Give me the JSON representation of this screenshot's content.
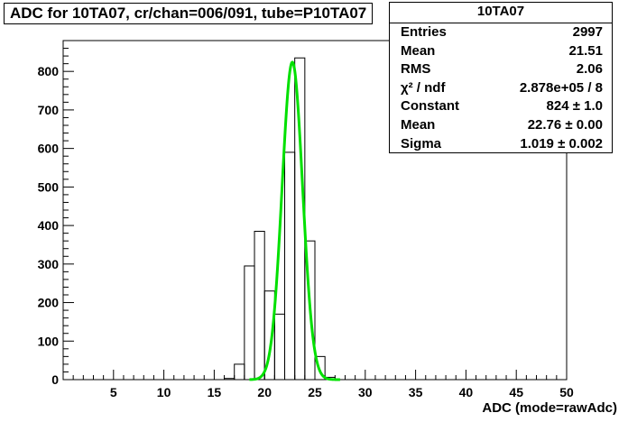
{
  "title": "ADC for 10TA07,  cr/chan=006/091,  tube=P10TA07",
  "stats": {
    "name": "10TA07",
    "rows": [
      {
        "key": "Entries",
        "value": "2997"
      },
      {
        "key": "Mean",
        "value": "21.51"
      },
      {
        "key": "RMS",
        "value": "2.06"
      },
      {
        "key": "χ² / ndf",
        "value": "2.878e+05 / 8"
      },
      {
        "key": "Constant",
        "value": "824 ± 1.0"
      },
      {
        "key": "Mean",
        "value": "22.76 ± 0.00"
      },
      {
        "key": "Sigma",
        "value": "1.019 ± 0.002"
      }
    ]
  },
  "chart_data": {
    "type": "bar",
    "title": "ADC for 10TA07,  cr/chan=006/091,  tube=P10TA07",
    "xlabel": "ADC (mode=rawAdc)",
    "ylabel": "",
    "xlim": [
      0,
      50
    ],
    "ylim": [
      0,
      880
    ],
    "x_ticks": [
      5,
      10,
      15,
      20,
      25,
      30,
      35,
      40,
      45,
      50
    ],
    "y_ticks": [
      0,
      100,
      200,
      300,
      400,
      500,
      600,
      700,
      800
    ],
    "bin_width": 1,
    "bins": [
      {
        "x": 16,
        "value": 3
      },
      {
        "x": 17,
        "value": 40
      },
      {
        "x": 18,
        "value": 295
      },
      {
        "x": 19,
        "value": 385
      },
      {
        "x": 20,
        "value": 230
      },
      {
        "x": 21,
        "value": 170
      },
      {
        "x": 22,
        "value": 590
      },
      {
        "x": 23,
        "value": 835
      },
      {
        "x": 24,
        "value": 360
      },
      {
        "x": 25,
        "value": 60
      },
      {
        "x": 26,
        "value": 6
      }
    ],
    "fit": {
      "function": "gaus",
      "constant": 824,
      "mean": 22.76,
      "sigma": 1.019,
      "range": [
        18.5,
        27.5
      ],
      "color": "#00e000"
    },
    "histogram_color": "#000000"
  }
}
